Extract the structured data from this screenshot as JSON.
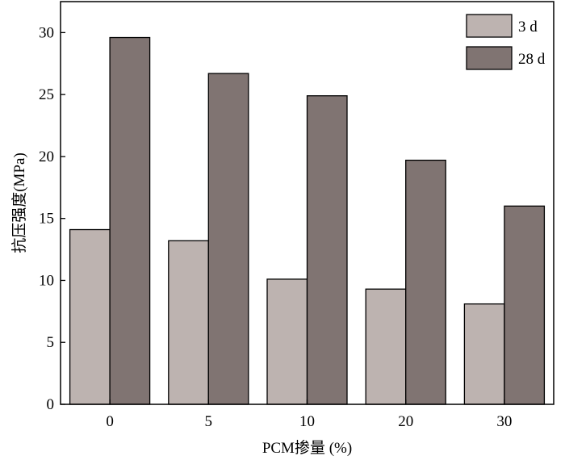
{
  "chart_data": {
    "type": "bar",
    "categories": [
      "0",
      "5",
      "10",
      "20",
      "30"
    ],
    "series": [
      {
        "name": "3 d",
        "values": [
          14.1,
          13.2,
          10.1,
          9.3,
          8.1
        ],
        "color": "#bdb3b0"
      },
      {
        "name": "28 d",
        "values": [
          29.6,
          26.7,
          24.9,
          19.7,
          16.0
        ],
        "color": "#807472"
      }
    ],
    "title": "",
    "xlabel": "PCM掺量 (%)",
    "ylabel": "抗压强度(MPa)",
    "ylim": [
      0,
      32.5
    ],
    "yticks": [
      0,
      5,
      10,
      15,
      20,
      25,
      30
    ],
    "grid": false,
    "legend_position": "top-right"
  }
}
